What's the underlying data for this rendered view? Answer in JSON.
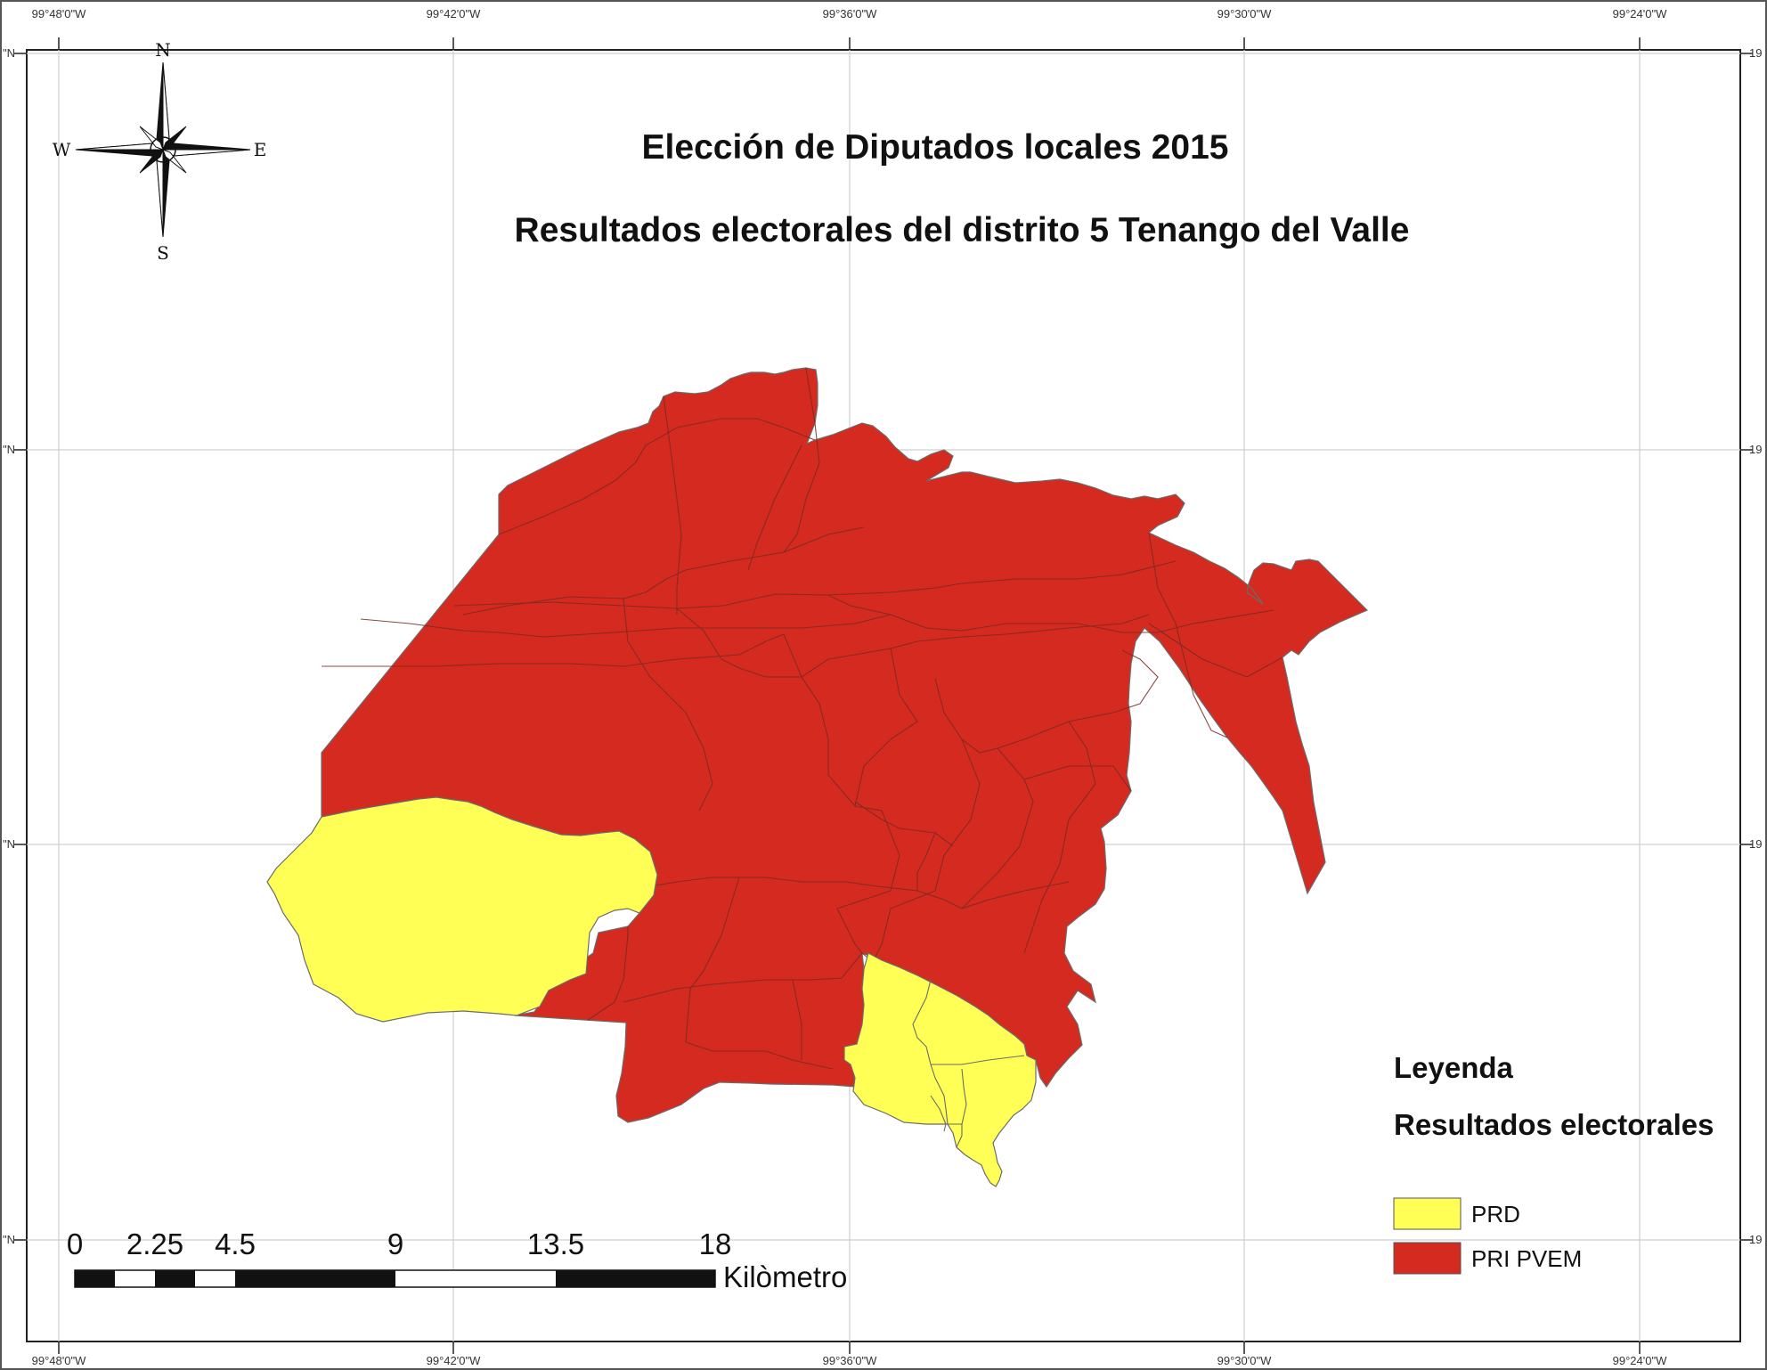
{
  "map": {
    "title": "Elección de Diputados locales 2015",
    "subtitle": "Resultados electorales del distrito 5 Tenango del Valle",
    "graticule": {
      "top_labels": [
        "99°48'0\"W",
        "99°42'0\"W",
        "99°36'0\"W",
        "99°30'0\"W",
        "99°24'0\"W"
      ],
      "bottom_labels": [
        "99°48'0\"W",
        "99°42'0\"W",
        "99°36'0\"W",
        "99°30'0\"W",
        "99°24'0\"W"
      ],
      "left_labels": [
        "\"N",
        "\"N",
        "\"N",
        "\"N"
      ],
      "right_labels": [
        "19",
        "19",
        "19",
        "19"
      ]
    },
    "compass": {
      "n": "N",
      "s": "S",
      "e": "E",
      "w": "W"
    },
    "legend": {
      "heading": "Leyenda",
      "subheading": "Resultados electorales",
      "items": [
        {
          "label": "PRD",
          "color": "#ffff55"
        },
        {
          "label": "PRI PVEM",
          "color": "#d42a20"
        }
      ]
    },
    "scale_bar": {
      "ticks": [
        "0",
        "2.25",
        "4.5",
        "9",
        "13.5",
        "18"
      ],
      "unit": "Kilòmetro"
    },
    "colors": {
      "pri_pvem": "#d42a20",
      "prd": "#ffff55",
      "boundary": "#6b6b6b"
    }
  }
}
